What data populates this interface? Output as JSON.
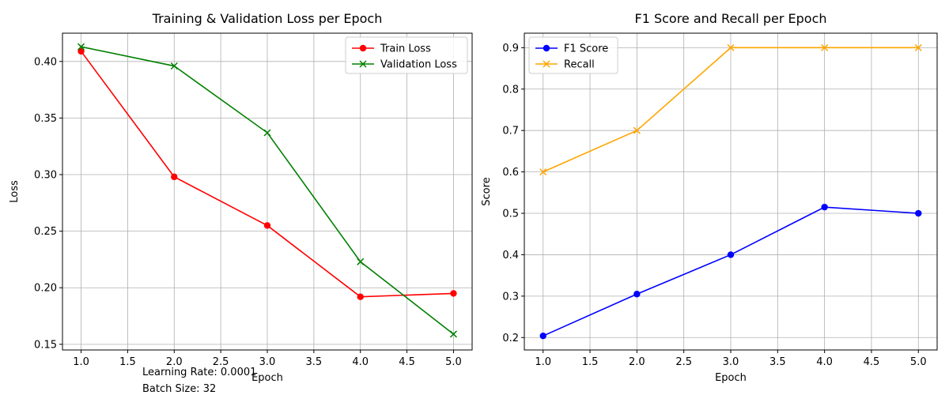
{
  "chart_data": [
    {
      "type": "line",
      "title": "Training & Validation Loss per Epoch",
      "xlabel": "Epoch",
      "ylabel": "Loss",
      "xlim": [
        0.8,
        5.2
      ],
      "ylim": [
        0.145,
        0.425
      ],
      "xticks": [
        1.0,
        1.5,
        2.0,
        2.5,
        3.0,
        3.5,
        4.0,
        4.5,
        5.0
      ],
      "yticks": [
        0.15,
        0.2,
        0.25,
        0.3,
        0.35,
        0.4
      ],
      "grid": true,
      "legend_position": "top-right",
      "x": [
        1,
        2,
        3,
        4,
        5
      ],
      "series": [
        {
          "name": "Train Loss",
          "color": "#ff0000",
          "marker": "circle",
          "values": [
            0.409,
            0.298,
            0.255,
            0.192,
            0.195
          ]
        },
        {
          "name": "Validation Loss",
          "color": "#008000",
          "marker": "x",
          "values": [
            0.413,
            0.396,
            0.337,
            0.223,
            0.159
          ]
        }
      ]
    },
    {
      "type": "line",
      "title": "F1 Score and Recall per Epoch",
      "xlabel": "Epoch",
      "ylabel": "Score",
      "xlim": [
        0.8,
        5.2
      ],
      "ylim": [
        0.17,
        0.935
      ],
      "xticks": [
        1.0,
        1.5,
        2.0,
        2.5,
        3.0,
        3.5,
        4.0,
        4.5,
        5.0
      ],
      "yticks": [
        0.2,
        0.3,
        0.4,
        0.5,
        0.6,
        0.7,
        0.8,
        0.9
      ],
      "grid": true,
      "legend_position": "top-left",
      "x": [
        1,
        2,
        3,
        4,
        5
      ],
      "series": [
        {
          "name": "F1 Score",
          "color": "#0000ff",
          "marker": "circle",
          "values": [
            0.204,
            0.305,
            0.4,
            0.515,
            0.5
          ]
        },
        {
          "name": "Recall",
          "color": "#ffa500",
          "marker": "x",
          "values": [
            0.6,
            0.7,
            0.9,
            0.9,
            0.9
          ]
        }
      ]
    }
  ],
  "annotations": {
    "learning_rate": "Learning Rate: 0.0001",
    "batch_size": "Batch Size: 32"
  }
}
